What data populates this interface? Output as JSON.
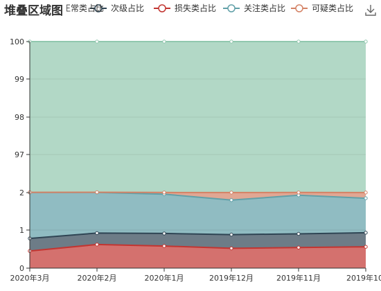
{
  "chart_data": {
    "type": "area",
    "title": "堆叠区域图",
    "stacked": true,
    "x": [
      "2020年3月",
      "2020年2月",
      "2020年1月",
      "2019年12月",
      "2019年11月",
      "2019年10月"
    ],
    "y_ticks": [
      "0",
      "1",
      "2",
      "97",
      "98",
      "99",
      "100"
    ],
    "series": [
      {
        "name": "损失类占比",
        "color": "#c23531",
        "values": [
          0.45,
          0.62,
          0.58,
          0.52,
          0.54,
          0.56
        ]
      },
      {
        "name": "次级占比",
        "color": "#2f4554",
        "values": [
          0.33,
          0.3,
          0.33,
          0.36,
          0.36,
          0.37
        ]
      },
      {
        "name": "关注类占比",
        "color": "#61a0a8",
        "values": [
          1.53,
          1.58,
          1.05,
          0.92,
          1.03,
          0.92
        ]
      },
      {
        "name": "可疑类占比",
        "color": "#d48265",
        "values": [
          0.42,
          0.41,
          0.37,
          0.38,
          0.4,
          0.4
        ]
      },
      {
        "name": "正常类占比",
        "color": "#91c7ae",
        "values": [
          97.27,
          97.09,
          97.67,
          97.82,
          97.67,
          97.75
        ]
      }
    ],
    "legend_visible": [
      "次级占比",
      "损失类占比",
      "关注类占比",
      "可疑类占比"
    ],
    "legend_position": "top",
    "grid": true
  },
  "toolbox": {
    "download_icon": "download-icon"
  }
}
